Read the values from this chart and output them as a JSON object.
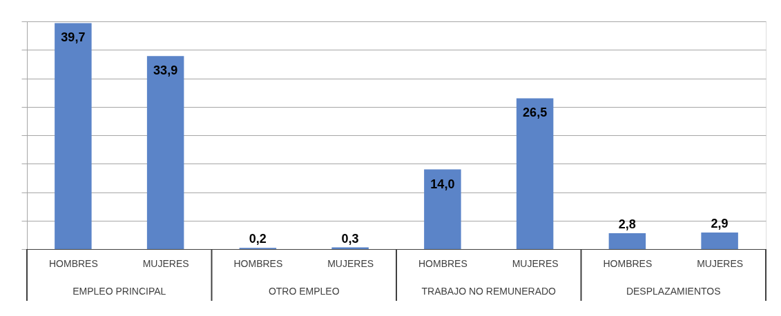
{
  "chart_data": {
    "type": "bar",
    "categories": [
      "HOMBRES",
      "MUJERES",
      "HOMBRES",
      "MUJERES",
      "HOMBRES",
      "MUJERES",
      "HOMBRES",
      "MUJERES"
    ],
    "values": [
      39.7,
      33.9,
      0.2,
      0.3,
      14.0,
      26.5,
      2.8,
      2.9
    ],
    "value_labels": [
      "39,7",
      "33,9",
      "0,2",
      "0,3",
      "14,0",
      "26,5",
      "2,8",
      "2,9"
    ],
    "color": "#5b84c8",
    "tick_labels": "x",
    "grid": "y",
    "annotations": [
      "EMPLEO PRINCIPAL",
      "OTRO EMPLEO",
      "TRABAJO NO REMUNERADO",
      "DESPLAZAMIENTOS"
    ]
  }
}
